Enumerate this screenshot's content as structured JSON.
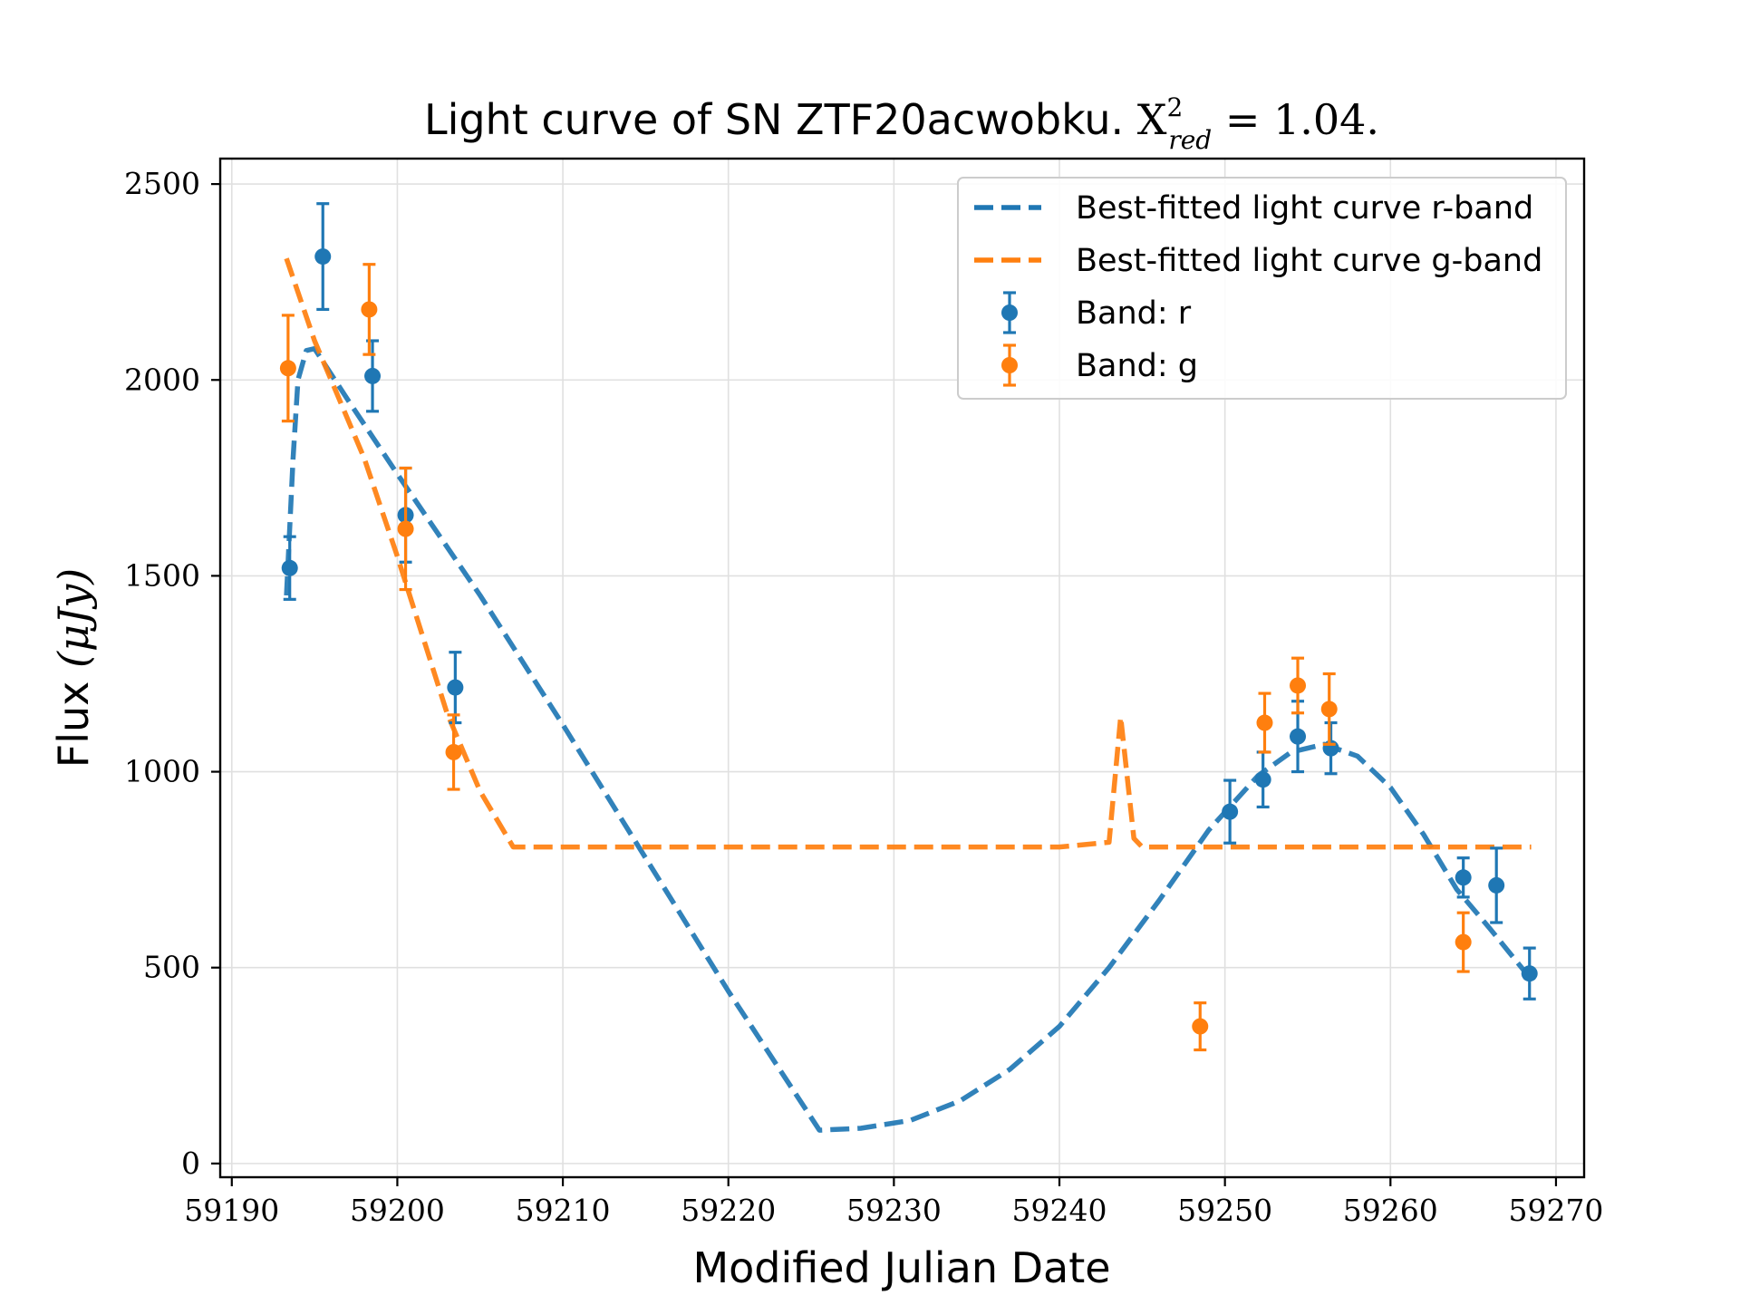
{
  "chart_data": {
    "type": "scatter",
    "title": "Light curve of SN ZTF20acwobku. Χ²_red = 1.04.",
    "title_parts": {
      "prefix": "Light curve of SN ZTF20acwobku. ",
      "chi": "X",
      "sup": "2",
      "sub": "red",
      "suffix": " = 1.04."
    },
    "xlabel": "Modified Julian Date",
    "ylabel": "Flux (μJy)",
    "ylabel_parts": {
      "text": "Flux ",
      "math": "(μJy)"
    },
    "xlim": [
      59189.3,
      59271.7
    ],
    "ylim": [
      -35,
      2565
    ],
    "xticks": [
      59190,
      59200,
      59210,
      59220,
      59230,
      59240,
      59250,
      59260,
      59270
    ],
    "yticks": [
      0,
      500,
      1000,
      1500,
      2000,
      2500
    ],
    "grid": true,
    "legend_position": "top-right",
    "colors": {
      "r": "#1f77b4",
      "g": "#ff7f0e"
    },
    "series": [
      {
        "name": "Best-fitted light curve r-band",
        "kind": "line",
        "style": "dashed",
        "color": "#1f77b4",
        "x": [
          59193.3,
          59193.7,
          59194.0,
          59194.5,
          59195.0,
          59197.0,
          59200.0,
          59205.0,
          59210.0,
          59215.0,
          59220.0,
          59225.5,
          59228.0,
          59231.0,
          59234.0,
          59237.0,
          59240.0,
          59243.0,
          59246.0,
          59249.0,
          59252.0,
          59254.0,
          59256.0,
          59258.0,
          59260.0,
          59262.0,
          59264.0,
          59266.0,
          59268.5
        ],
        "y": [
          1450,
          1800,
          2000,
          2075,
          2080,
          1950,
          1760,
          1450,
          1120,
          780,
          440,
          85,
          90,
          110,
          160,
          240,
          350,
          500,
          670,
          850,
          990,
          1050,
          1070,
          1040,
          960,
          840,
          700,
          600,
          470
        ]
      },
      {
        "name": "Best-fitted light curve g-band",
        "kind": "line",
        "style": "dashed",
        "color": "#ff7f0e",
        "x": [
          59193.3,
          59195.0,
          59198.0,
          59200.0,
          59203.0,
          59205.0,
          59207.0,
          59210.0,
          59220.0,
          59230.0,
          59240.0,
          59243.0,
          59243.7,
          59244.5,
          59245.0,
          59250.0,
          59260.0,
          59268.5
        ],
        "y": [
          2310,
          2100,
          1800,
          1550,
          1150,
          950,
          808,
          808,
          808,
          808,
          808,
          820,
          1140,
          830,
          808,
          808,
          808,
          808
        ]
      },
      {
        "name": "Band: r",
        "kind": "errorbar",
        "color": "#1f77b4",
        "x": [
          59193.5,
          59195.5,
          59198.5,
          59200.5,
          59203.5,
          59250.3,
          59252.3,
          59254.4,
          59256.4,
          59264.4,
          59266.4,
          59268.4
        ],
        "y": [
          1520,
          2315,
          2010,
          1655,
          1215,
          898,
          980,
          1090,
          1060,
          730,
          710,
          485
        ],
        "yerr": [
          80,
          135,
          90,
          120,
          90,
          80,
          70,
          90,
          65,
          50,
          95,
          65
        ]
      },
      {
        "name": "Band: g",
        "kind": "errorbar",
        "color": "#ff7f0e",
        "x": [
          59193.4,
          59198.3,
          59200.5,
          59203.4,
          59248.5,
          59252.4,
          59254.4,
          59256.3,
          59264.4
        ],
        "y": [
          2030,
          2180,
          1620,
          1050,
          350,
          1125,
          1220,
          1160,
          565
        ],
        "yerr": [
          135,
          115,
          155,
          95,
          60,
          75,
          70,
          90,
          75
        ]
      }
    ]
  }
}
